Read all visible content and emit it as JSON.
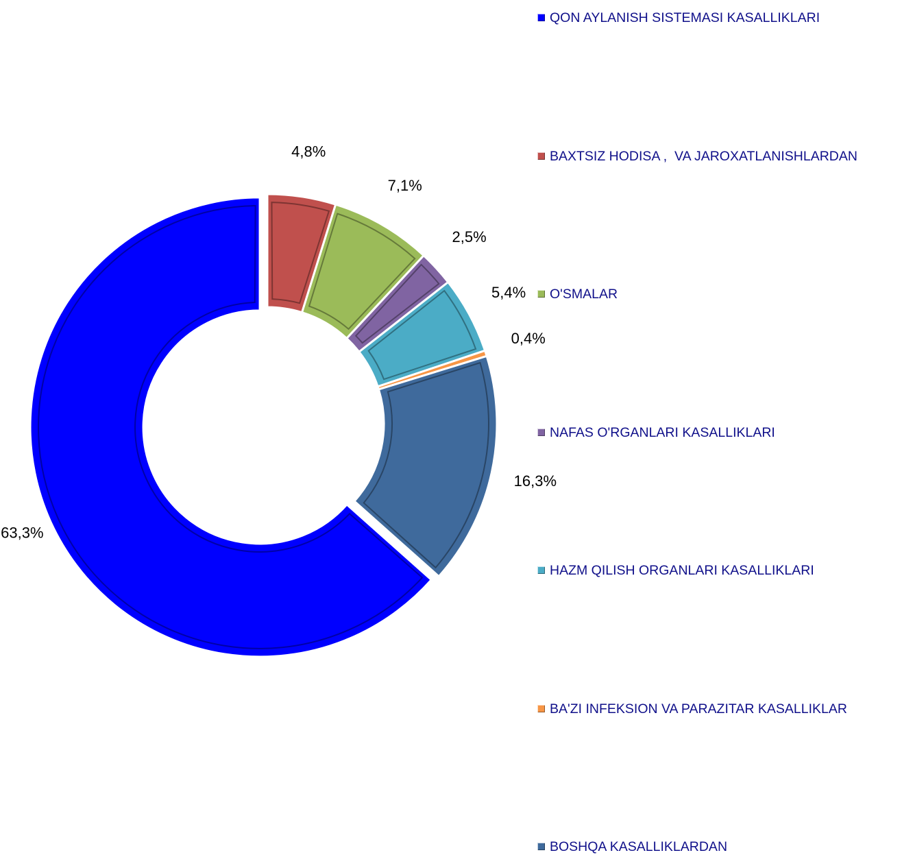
{
  "chart_data": {
    "type": "donut",
    "categories": [
      "QON AYLANISH SISTEMASI KASALLIKLARI",
      "BAXTSIZ HODISA ,  VA JAROXATLANISHLARDAN",
      "O'SMALAR",
      "NAFAS O'RGANLARI KASALLIKLARI",
      "HAZM QILISH ORGANLARI KASALLIKLARI",
      "BA'ZI INFEKSION VA PARAZITAR KASALLIKLAR",
      "BOSHQA KASALLIKLARDAN"
    ],
    "values": [
      63.3,
      4.8,
      7.1,
      2.5,
      5.4,
      0.4,
      16.3
    ],
    "value_labels": [
      "63,3%",
      "4,8%",
      "7,1%",
      "2,5%",
      "5,4%",
      "0,4%",
      "16,3%"
    ],
    "colors": [
      "#0000ff",
      "#c0504d",
      "#9bbb59",
      "#8064a2",
      "#4bacc6",
      "#f79646",
      "#3f6a9c"
    ],
    "legend": "right"
  }
}
